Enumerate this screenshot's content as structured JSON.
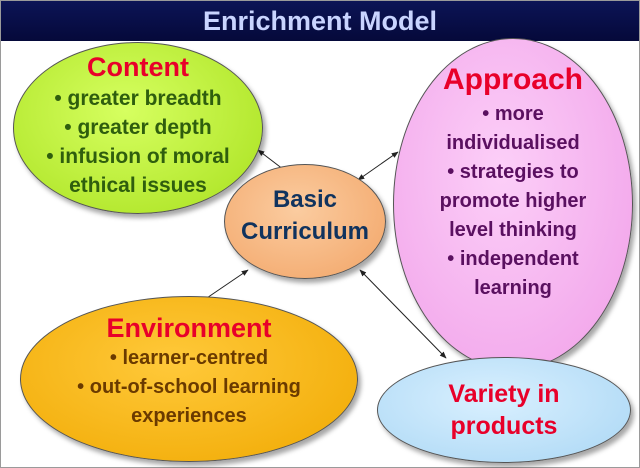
{
  "title": "Enrichment Model",
  "center": {
    "line1": "Basic",
    "line2": "Curriculum"
  },
  "content": {
    "title": "Content",
    "items": [
      "• greater breadth",
      "• greater depth",
      "• infusion of moral",
      "ethical issues"
    ]
  },
  "approach": {
    "title": "Approach",
    "items": [
      "• more",
      "individualised",
      "• strategies to",
      "promote higher",
      "level thinking",
      "• independent",
      "learning"
    ]
  },
  "environment": {
    "title": "Environment",
    "items": [
      "• learner-centred",
      "• out-of-school learning",
      "experiences"
    ]
  },
  "products": {
    "line1": "Variety in",
    "line2": "products"
  },
  "colors": {
    "banner": "#0c1456",
    "content_fill": "#bff03a",
    "approach_fill": "#f7b4f2",
    "environment_fill": "#f7b40a",
    "products_fill": "#bde3f9",
    "center_fill": "#f7b57f",
    "title_red": "#e8002a",
    "content_text": "#2f5e0e",
    "approach_text": "#5a1060",
    "environment_text": "#6a3a00",
    "center_text": "#10335e"
  }
}
